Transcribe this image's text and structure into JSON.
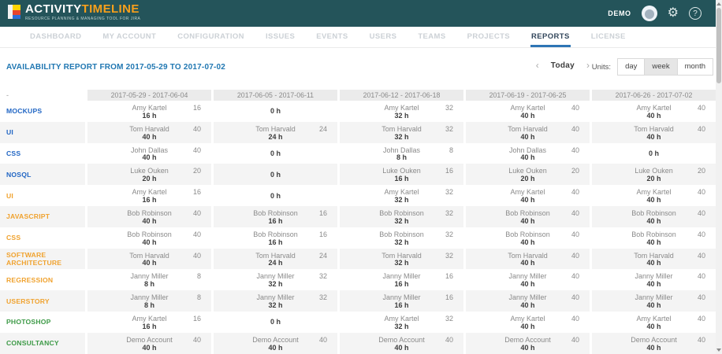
{
  "app": {
    "logo_title_1": "ACTIVITY",
    "logo_title_2": "TIMELINE",
    "logo_subtitle": "RESOURCE PLANNING & MANAGING TOOL FOR JIRA",
    "user_label": "DEMO",
    "help_glyph": "?",
    "gear_glyph": "⚙"
  },
  "colors": {
    "header_bg": "#24545a",
    "accent_orange": "#f9a01b",
    "active_tab": "#2e75b5",
    "title_blue": "#2077b2",
    "label_blue": "#2166c4",
    "label_orange": "#f0a22e",
    "label_green": "#3d9a47"
  },
  "nav": {
    "items": [
      {
        "label": "DASHBOARD",
        "active": false
      },
      {
        "label": "MY ACCOUNT",
        "active": false
      },
      {
        "label": "CONFIGURATION",
        "active": false
      },
      {
        "label": "ISSUES",
        "active": false
      },
      {
        "label": "EVENTS",
        "active": false
      },
      {
        "label": "USERS",
        "active": false
      },
      {
        "label": "TEAMS",
        "active": false
      },
      {
        "label": "PROJECTS",
        "active": false
      },
      {
        "label": "REPORTS",
        "active": true
      },
      {
        "label": "LICENSE",
        "active": false
      }
    ]
  },
  "report": {
    "title": "AVAILABILITY REPORT FROM 2017-05-29 TO 2017-07-02",
    "prev_glyph": "‹",
    "next_glyph": "›",
    "today_label": "Today",
    "units_label": "Units:",
    "units": [
      "day",
      "week",
      "month"
    ],
    "selected_unit": "week"
  },
  "table": {
    "corner_label": "-",
    "columns": [
      "2017-05-29 - 2017-06-04",
      "2017-06-05 - 2017-06-11",
      "2017-06-12 - 2017-06-18",
      "2017-06-19 - 2017-06-25",
      "2017-06-26 - 2017-07-02"
    ],
    "rows": [
      {
        "label": "MOCKUPS",
        "color": "blue",
        "cells": [
          {
            "name": "Amy Kartel",
            "value": "16",
            "hours": "16 h"
          },
          {
            "hours": "0 h"
          },
          {
            "name": "Amy Kartel",
            "value": "32",
            "hours": "32 h"
          },
          {
            "name": "Amy Kartel",
            "value": "40",
            "hours": "40 h"
          },
          {
            "name": "Amy Kartel",
            "value": "40",
            "hours": "40 h"
          }
        ]
      },
      {
        "label": "UI",
        "color": "blue",
        "cells": [
          {
            "name": "Tom Harvald",
            "value": "40",
            "hours": "40 h"
          },
          {
            "name": "Tom Harvald",
            "value": "24",
            "hours": "24 h"
          },
          {
            "name": "Tom Harvald",
            "value": "32",
            "hours": "32 h"
          },
          {
            "name": "Tom Harvald",
            "value": "40",
            "hours": "40 h"
          },
          {
            "name": "Tom Harvald",
            "value": "40",
            "hours": "40 h"
          }
        ]
      },
      {
        "label": "CSS",
        "color": "blue",
        "cells": [
          {
            "name": "John Dallas",
            "value": "40",
            "hours": "40 h"
          },
          {
            "hours": "0 h"
          },
          {
            "name": "John Dallas",
            "value": "8",
            "hours": "8 h"
          },
          {
            "name": "John Dallas",
            "value": "40",
            "hours": "40 h"
          },
          {
            "hours": "0 h"
          }
        ]
      },
      {
        "label": "NOSQL",
        "color": "blue",
        "cells": [
          {
            "name": "Luke Ouken",
            "value": "20",
            "hours": "20 h"
          },
          {
            "hours": "0 h"
          },
          {
            "name": "Luke Ouken",
            "value": "16",
            "hours": "16 h"
          },
          {
            "name": "Luke Ouken",
            "value": "20",
            "hours": "20 h"
          },
          {
            "name": "Luke Ouken",
            "value": "20",
            "hours": "20 h"
          }
        ]
      },
      {
        "label": "UI",
        "color": "orange",
        "cells": [
          {
            "name": "Amy Kartel",
            "value": "16",
            "hours": "16 h"
          },
          {
            "hours": "0 h"
          },
          {
            "name": "Amy Kartel",
            "value": "32",
            "hours": "32 h"
          },
          {
            "name": "Amy Kartel",
            "value": "40",
            "hours": "40 h"
          },
          {
            "name": "Amy Kartel",
            "value": "40",
            "hours": "40 h"
          }
        ]
      },
      {
        "label": "JAVASCRIPT",
        "color": "orange",
        "cells": [
          {
            "name": "Bob Robinson",
            "value": "40",
            "hours": "40 h"
          },
          {
            "name": "Bob Robinson",
            "value": "16",
            "hours": "16 h"
          },
          {
            "name": "Bob Robinson",
            "value": "32",
            "hours": "32 h"
          },
          {
            "name": "Bob Robinson",
            "value": "40",
            "hours": "40 h"
          },
          {
            "name": "Bob Robinson",
            "value": "40",
            "hours": "40 h"
          }
        ]
      },
      {
        "label": "CSS",
        "color": "orange",
        "cells": [
          {
            "name": "Bob Robinson",
            "value": "40",
            "hours": "40 h"
          },
          {
            "name": "Bob Robinson",
            "value": "16",
            "hours": "16 h"
          },
          {
            "name": "Bob Robinson",
            "value": "32",
            "hours": "32 h"
          },
          {
            "name": "Bob Robinson",
            "value": "40",
            "hours": "40 h"
          },
          {
            "name": "Bob Robinson",
            "value": "40",
            "hours": "40 h"
          }
        ]
      },
      {
        "label": "SOFTWARE ARCHITECTURE",
        "color": "orange",
        "cells": [
          {
            "name": "Tom Harvald",
            "value": "40",
            "hours": "40 h"
          },
          {
            "name": "Tom Harvald",
            "value": "24",
            "hours": "24 h"
          },
          {
            "name": "Tom Harvald",
            "value": "32",
            "hours": "32 h"
          },
          {
            "name": "Tom Harvald",
            "value": "40",
            "hours": "40 h"
          },
          {
            "name": "Tom Harvald",
            "value": "40",
            "hours": "40 h"
          }
        ]
      },
      {
        "label": "REGRESSION",
        "color": "orange",
        "cells": [
          {
            "name": "Janny Miller",
            "value": "8",
            "hours": "8 h"
          },
          {
            "name": "Janny Miller",
            "value": "32",
            "hours": "32 h"
          },
          {
            "name": "Janny Miller",
            "value": "16",
            "hours": "16 h"
          },
          {
            "name": "Janny Miller",
            "value": "40",
            "hours": "40 h"
          },
          {
            "name": "Janny Miller",
            "value": "40",
            "hours": "40 h"
          }
        ]
      },
      {
        "label": "USERSTORY",
        "color": "orange",
        "cells": [
          {
            "name": "Janny Miller",
            "value": "8",
            "hours": "8 h"
          },
          {
            "name": "Janny Miller",
            "value": "32",
            "hours": "32 h"
          },
          {
            "name": "Janny Miller",
            "value": "16",
            "hours": "16 h"
          },
          {
            "name": "Janny Miller",
            "value": "40",
            "hours": "40 h"
          },
          {
            "name": "Janny Miller",
            "value": "40",
            "hours": "40 h"
          }
        ]
      },
      {
        "label": "PHOTOSHOP",
        "color": "green",
        "cells": [
          {
            "name": "Amy Kartel",
            "value": "16",
            "hours": "16 h"
          },
          {
            "hours": "0 h"
          },
          {
            "name": "Amy Kartel",
            "value": "32",
            "hours": "32 h"
          },
          {
            "name": "Amy Kartel",
            "value": "40",
            "hours": "40 h"
          },
          {
            "name": "Amy Kartel",
            "value": "40",
            "hours": "40 h"
          }
        ]
      },
      {
        "label": "CONSULTANCY",
        "color": "green",
        "cells": [
          {
            "name": "Demo Account",
            "value": "40",
            "hours": "40 h"
          },
          {
            "name": "Demo Account",
            "value": "40",
            "hours": "40 h"
          },
          {
            "name": "Demo Account",
            "value": "40",
            "hours": "40 h"
          },
          {
            "name": "Demo Account",
            "value": "40",
            "hours": "40 h"
          },
          {
            "name": "Demo Account",
            "value": "40",
            "hours": "40 h"
          }
        ]
      }
    ]
  }
}
